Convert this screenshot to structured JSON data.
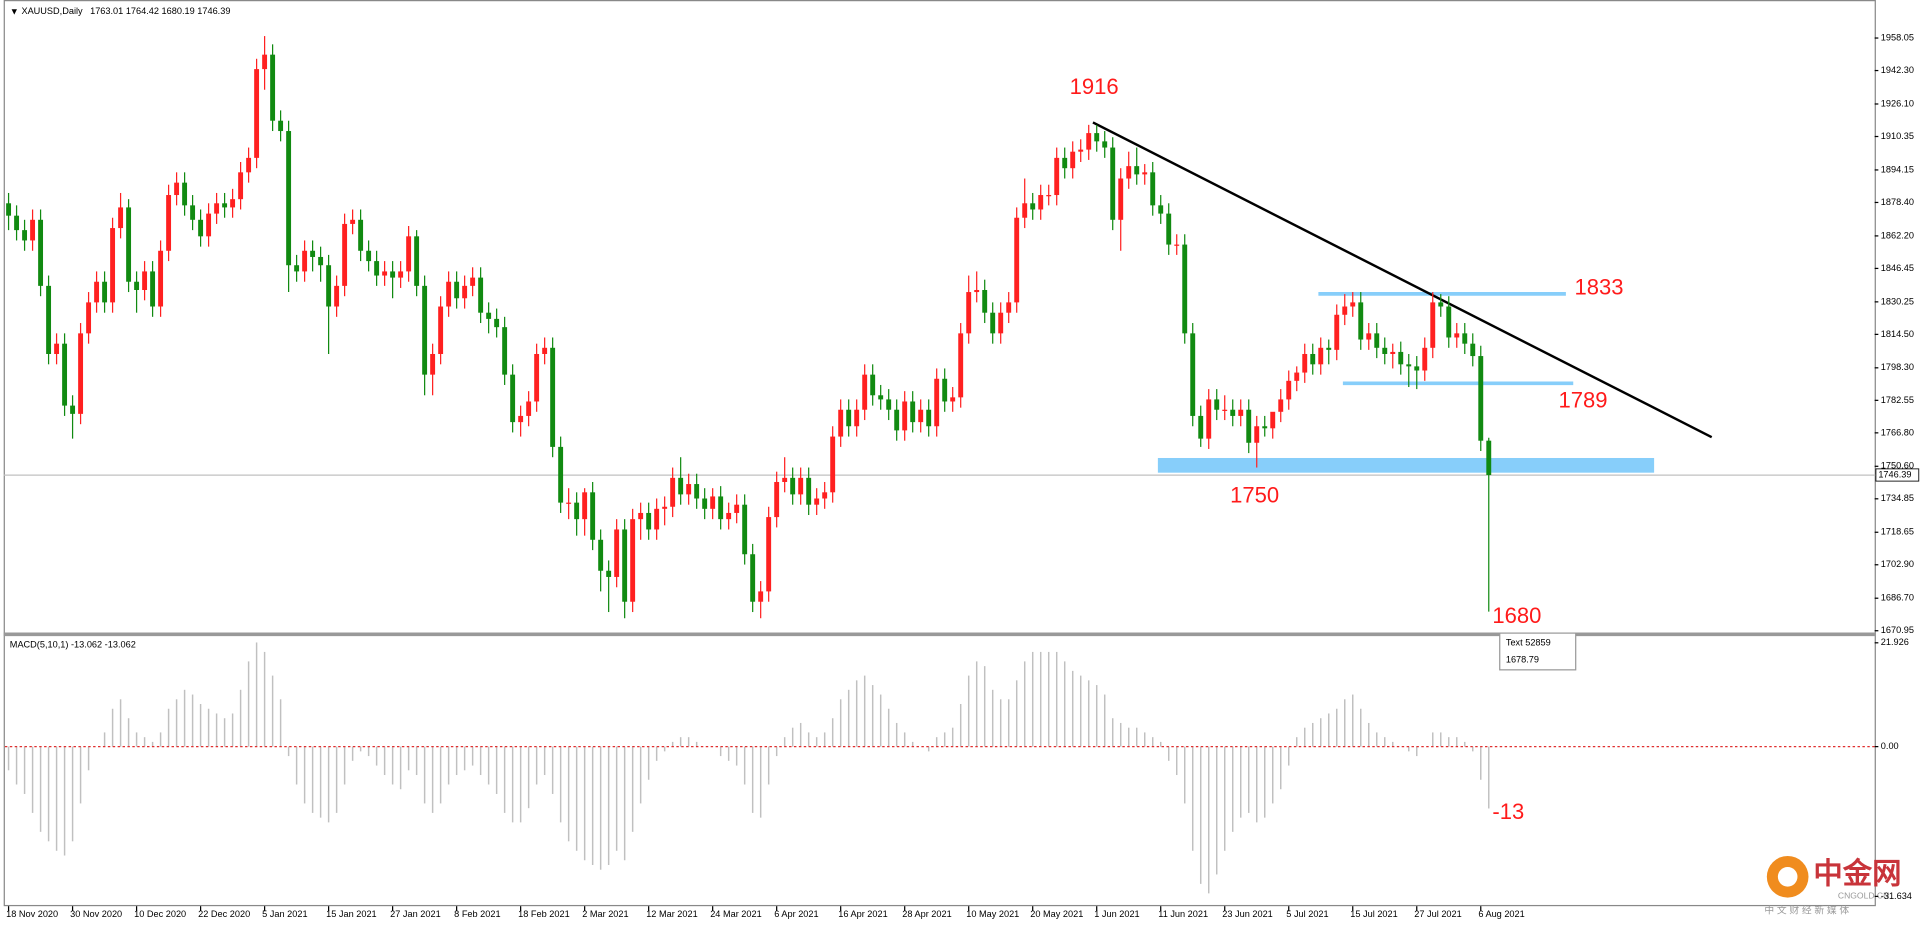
{
  "chart_data": [
    {
      "type": "candlestick",
      "title": "XAUUSD,Daily",
      "bull_color": "#ff2020",
      "bear_color": "#118a11",
      "categories": [
        "18 Nov 2020",
        null,
        null,
        null,
        null,
        null,
        null,
        null,
        "30 Nov 2020",
        null,
        null,
        null,
        null,
        null,
        null,
        null,
        "10 Dec 2020",
        null,
        null,
        null,
        null,
        null,
        null,
        null,
        "22 Dec 2020",
        null,
        null,
        null,
        null,
        null,
        null,
        null,
        "5 Jan 2021",
        null,
        null,
        null,
        null,
        null,
        null,
        null,
        "15 Jan 2021",
        null,
        null,
        null,
        null,
        null,
        null,
        null,
        "27 Jan 2021",
        null,
        null,
        null,
        null,
        null,
        null,
        null,
        "8 Feb 2021",
        null,
        null,
        null,
        null,
        null,
        null,
        null,
        "18 Feb 2021",
        null,
        null,
        null,
        null,
        null,
        null,
        null,
        "2 Mar 2021",
        null,
        null,
        null,
        null,
        null,
        null,
        null,
        "12 Mar 2021",
        null,
        null,
        null,
        null,
        null,
        null,
        null,
        "24 Mar 2021",
        null,
        null,
        null,
        null,
        null,
        null,
        null,
        "6 Apr 2021",
        null,
        null,
        null,
        null,
        null,
        null,
        null,
        "16 Apr 2021",
        null,
        null,
        null,
        null,
        null,
        null,
        null,
        "28 Apr 2021",
        null,
        null,
        null,
        null,
        null,
        null,
        null,
        "10 May 2021",
        null,
        null,
        null,
        null,
        null,
        null,
        null,
        "20 May 2021",
        null,
        null,
        null,
        null,
        null,
        null,
        null,
        "1 Jun 2021",
        null,
        null,
        null,
        null,
        null,
        null,
        null,
        "11 Jun 2021",
        null,
        null,
        null,
        null,
        null,
        null,
        null,
        "23 Jun 2021",
        null,
        null,
        null,
        null,
        null,
        null,
        null,
        "5 Jul 2021",
        null,
        null,
        null,
        null,
        null,
        null,
        null,
        "15 Jul 2021",
        null,
        null,
        null,
        null,
        null,
        null,
        null,
        "27 Jul 2021",
        null,
        null,
        null,
        null,
        null,
        null,
        null,
        "6 Aug 2021",
        null
      ],
      "open": [
        1878,
        1872,
        1865,
        1860,
        1870,
        1838,
        1805,
        1810,
        1780,
        1776,
        1815,
        1830,
        1840,
        1830,
        1866,
        1876,
        1840,
        1836,
        1845,
        1828,
        1855,
        1882,
        1888,
        1877,
        1870,
        1862,
        1873,
        1878,
        1876,
        1880,
        1893,
        1900,
        1943,
        1950,
        1918,
        1913,
        1848,
        1845,
        1855,
        1852,
        1848,
        1828,
        1838,
        1868,
        1870,
        1855,
        1850,
        1843,
        1845,
        1842,
        1845,
        1862,
        1838,
        1795,
        1805,
        1828,
        1840,
        1832,
        1838,
        1842,
        1825,
        1822,
        1818,
        1795,
        1772,
        1775,
        1782,
        1805,
        1808,
        1760,
        1733,
        1733,
        1725,
        1738,
        1715,
        1700,
        1697,
        1720,
        1685,
        1725,
        1728,
        1720,
        1730,
        1731,
        1745,
        1737,
        1742,
        1735,
        1730,
        1736,
        1725,
        1728,
        1732,
        1708,
        1685,
        1690,
        1726,
        1743,
        1745,
        1737,
        1745,
        1732,
        1735,
        1738,
        1765,
        1778,
        1770,
        1778,
        1795,
        1785,
        1783,
        1778,
        1768,
        1782,
        1772,
        1778,
        1770,
        1793,
        1782,
        1784,
        1815,
        1835,
        1836,
        1825,
        1815,
        1825,
        1830,
        1871,
        1878,
        1875,
        1882,
        1882,
        1900,
        1895,
        1903,
        1904,
        1912,
        1908,
        1905,
        1870,
        1890,
        1896,
        1892,
        1893,
        1877,
        1873,
        1858,
        1858,
        1815,
        1775,
        1764,
        1783,
        1778,
        1778,
        1775,
        1778,
        1762,
        1770,
        1769,
        1777,
        1783,
        1792,
        1796,
        1805,
        1800,
        1808,
        1807,
        1824,
        1828,
        1830,
        1812,
        1815,
        1808,
        1805,
        1806,
        1800,
        1799,
        1797,
        1808,
        1830,
        1828,
        1813,
        1815,
        1810,
        1804,
        1763.01
      ],
      "high": [
        1883,
        1877,
        1870,
        1875,
        1875,
        1843,
        1815,
        1815,
        1785,
        1820,
        1835,
        1845,
        1845,
        1871,
        1883,
        1880,
        1845,
        1850,
        1850,
        1860,
        1887,
        1893,
        1893,
        1882,
        1875,
        1878,
        1883,
        1883,
        1885,
        1898,
        1905,
        1948,
        1959,
        1955,
        1923,
        1918,
        1853,
        1860,
        1860,
        1857,
        1853,
        1843,
        1873,
        1875,
        1875,
        1860,
        1855,
        1850,
        1850,
        1850,
        1867,
        1865,
        1843,
        1810,
        1833,
        1845,
        1845,
        1843,
        1847,
        1847,
        1830,
        1827,
        1823,
        1800,
        1780,
        1787,
        1810,
        1813,
        1813,
        1765,
        1740,
        1738,
        1740,
        1743,
        1720,
        1705,
        1725,
        1725,
        1730,
        1733,
        1733,
        1735,
        1736,
        1750,
        1755,
        1747,
        1747,
        1740,
        1740,
        1741,
        1733,
        1737,
        1737,
        1713,
        1695,
        1731,
        1748,
        1755,
        1750,
        1750,
        1750,
        1740,
        1743,
        1770,
        1783,
        1783,
        1783,
        1800,
        1800,
        1790,
        1788,
        1783,
        1787,
        1787,
        1783,
        1783,
        1798,
        1798,
        1789,
        1820,
        1843,
        1845,
        1841,
        1830,
        1830,
        1835,
        1876,
        1890,
        1883,
        1887,
        1887,
        1905,
        1905,
        1908,
        1909,
        1916,
        1916,
        1913,
        1910,
        1895,
        1903,
        1905,
        1897,
        1898,
        1882,
        1878,
        1863,
        1863,
        1820,
        1780,
        1788,
        1788,
        1785,
        1783,
        1783,
        1783,
        1775,
        1775,
        1774,
        1788,
        1797,
        1799,
        1810,
        1810,
        1813,
        1812,
        1829,
        1834,
        1835,
        1835,
        1820,
        1820,
        1813,
        1810,
        1811,
        1805,
        1804,
        1813,
        1835,
        1834,
        1833,
        1820,
        1820,
        1815,
        1809,
        1764.42
      ],
      "low": [
        1865,
        1860,
        1855,
        1855,
        1833,
        1800,
        1800,
        1775,
        1764,
        1771,
        1810,
        1825,
        1825,
        1825,
        1861,
        1835,
        1825,
        1831,
        1823,
        1823,
        1850,
        1877,
        1872,
        1865,
        1857,
        1857,
        1868,
        1871,
        1871,
        1875,
        1888,
        1895,
        1933,
        1913,
        1908,
        1835,
        1840,
        1840,
        1845,
        1840,
        1805,
        1823,
        1833,
        1863,
        1850,
        1845,
        1838,
        1838,
        1832,
        1837,
        1840,
        1833,
        1785,
        1785,
        1800,
        1823,
        1827,
        1827,
        1833,
        1820,
        1815,
        1813,
        1790,
        1767,
        1765,
        1770,
        1777,
        1800,
        1755,
        1728,
        1725,
        1717,
        1717,
        1710,
        1690,
        1680,
        1692,
        1677,
        1680,
        1715,
        1715,
        1715,
        1722,
        1726,
        1732,
        1732,
        1730,
        1725,
        1725,
        1720,
        1720,
        1723,
        1703,
        1680,
        1677,
        1685,
        1721,
        1738,
        1732,
        1732,
        1727,
        1727,
        1730,
        1733,
        1760,
        1765,
        1765,
        1773,
        1780,
        1778,
        1773,
        1763,
        1763,
        1767,
        1767,
        1765,
        1765,
        1777,
        1777,
        1779,
        1810,
        1830,
        1820,
        1810,
        1810,
        1820,
        1825,
        1866,
        1870,
        1870,
        1877,
        1877,
        1890,
        1890,
        1898,
        1899,
        1903,
        1900,
        1865,
        1855,
        1885,
        1887,
        1887,
        1872,
        1868,
        1853,
        1853,
        1810,
        1770,
        1760,
        1759,
        1773,
        1773,
        1770,
        1770,
        1757,
        1750,
        1765,
        1764,
        1772,
        1778,
        1787,
        1791,
        1795,
        1795,
        1800,
        1802,
        1819,
        1823,
        1807,
        1807,
        1803,
        1800,
        1798,
        1795,
        1789,
        1788,
        1792,
        1803,
        1823,
        1808,
        1808,
        1805,
        1799,
        1758,
        1680.19
      ],
      "close": [
        1872,
        1865,
        1860,
        1870,
        1838,
        1805,
        1810,
        1780,
        1776,
        1815,
        1830,
        1840,
        1830,
        1866,
        1876,
        1840,
        1836,
        1845,
        1828,
        1855,
        1882,
        1888,
        1877,
        1870,
        1862,
        1873,
        1878,
        1876,
        1880,
        1893,
        1900,
        1943,
        1950,
        1918,
        1913,
        1848,
        1845,
        1855,
        1852,
        1848,
        1828,
        1838,
        1868,
        1870,
        1855,
        1850,
        1843,
        1845,
        1842,
        1845,
        1862,
        1838,
        1795,
        1805,
        1828,
        1840,
        1832,
        1838,
        1842,
        1825,
        1822,
        1818,
        1795,
        1772,
        1775,
        1782,
        1805,
        1808,
        1760,
        1733,
        1733,
        1725,
        1738,
        1715,
        1700,
        1697,
        1720,
        1685,
        1725,
        1728,
        1720,
        1730,
        1731,
        1745,
        1737,
        1742,
        1735,
        1730,
        1736,
        1725,
        1728,
        1732,
        1708,
        1685,
        1690,
        1726,
        1743,
        1745,
        1737,
        1745,
        1732,
        1735,
        1738,
        1765,
        1778,
        1770,
        1778,
        1795,
        1785,
        1783,
        1778,
        1768,
        1782,
        1772,
        1778,
        1770,
        1793,
        1782,
        1784,
        1815,
        1835,
        1836,
        1825,
        1815,
        1825,
        1830,
        1871,
        1878,
        1875,
        1882,
        1882,
        1900,
        1895,
        1903,
        1904,
        1912,
        1908,
        1905,
        1870,
        1890,
        1896,
        1892,
        1893,
        1877,
        1873,
        1858,
        1858,
        1815,
        1775,
        1764,
        1783,
        1778,
        1778,
        1775,
        1778,
        1762,
        1770,
        1769,
        1777,
        1783,
        1792,
        1796,
        1805,
        1800,
        1808,
        1807,
        1824,
        1828,
        1830,
        1812,
        1815,
        1808,
        1805,
        1806,
        1800,
        1799,
        1797,
        1808,
        1830,
        1828,
        1813,
        1815,
        1810,
        1804,
        1763,
        1746.39
      ],
      "ylim": [
        1669.8,
        1974.1
      ],
      "yticks": [
        1958.05,
        {
          "value": 1942.3,
          "label": "1942.30"
        },
        {
          "value": 1926.1,
          "label": "1926.10"
        },
        1910.35,
        1894.15,
        {
          "value": 1878.4,
          "label": "1878.40"
        },
        {
          "value": 1862.2,
          "label": "1862.20"
        },
        1846.45,
        1830.25,
        {
          "value": 1814.5,
          "label": "1814.50"
        },
        {
          "value": 1798.3,
          "label": "1798.30"
        },
        1782.55,
        {
          "value": 1766.8,
          "label": "1766.80"
        },
        {
          "value": 1750.6,
          "label": "1750.60"
        },
        1734.85,
        1718.65,
        {
          "value": 1702.9,
          "label": "1702.90"
        },
        {
          "value": 1686.7,
          "label": "1686.70"
        },
        1670.95
      ],
      "annotations": [
        1916,
        1833,
        1789,
        1750,
        1680
      ],
      "tooltip": {
        "label": "Text 52859",
        "price": 1678.79
      }
    },
    {
      "type": "bar",
      "title": "MACD(5,10,1)",
      "readout": [
        -13.062,
        -13.062
      ],
      "color": "#c0c0c0",
      "values": [
        -5,
        -8,
        -10,
        -14,
        -18,
        -20,
        -22,
        -23,
        -20,
        -12,
        -5,
        0,
        3,
        8,
        10,
        6,
        3,
        2,
        1,
        3,
        8,
        10,
        12,
        11,
        9,
        8,
        7,
        6,
        7,
        12,
        18,
        22,
        20,
        15,
        10,
        -2,
        -8,
        -12,
        -14,
        -15,
        -16,
        -14,
        -8,
        -3,
        -1,
        -2,
        -4,
        -6,
        -8,
        -9,
        -5,
        -6,
        -12,
        -14,
        -12,
        -8,
        -6,
        -5,
        -4,
        -6,
        -8,
        -10,
        -14,
        -16,
        -16,
        -13,
        -8,
        -6,
        -10,
        -16,
        -20,
        -22,
        -24,
        -25,
        -26,
        -25,
        -22,
        -24,
        -18,
        -12,
        -7,
        -3,
        -1,
        1,
        2,
        2,
        1,
        0,
        0,
        -2,
        -3,
        -4,
        -8,
        -14,
        -15,
        -8,
        -2,
        2,
        4,
        5,
        3,
        2,
        3,
        6,
        10,
        12,
        14,
        15,
        13,
        11,
        8,
        5,
        3,
        1,
        0,
        -1,
        2,
        3,
        4,
        9,
        15,
        18,
        17,
        12,
        10,
        10,
        14,
        18,
        20,
        20,
        20,
        20,
        18,
        16,
        15,
        14,
        13,
        11,
        6,
        5,
        4,
        4,
        3,
        2,
        1,
        -3,
        -6,
        -12,
        -22,
        -29,
        -31,
        -27,
        -22,
        -18,
        -15,
        -14,
        -16,
        -15,
        -12,
        -9,
        -4,
        2,
        4,
        5,
        6,
        7,
        8,
        10,
        11,
        8,
        5,
        3,
        2,
        1,
        0,
        -1,
        -2,
        0,
        3,
        3,
        2,
        2,
        1,
        -1,
        -7,
        -13.062
      ],
      "ylim": [
        -33.7,
        23.2
      ],
      "yticks": [
        21.926,
        {
          "value": 0,
          "label": "0.00"
        },
        -31.634
      ],
      "annotations": [
        -13
      ]
    }
  ],
  "brand": {
    "name": "中金网",
    "site": "CNGOLD.CN",
    "slogan": "中 文 财 经 新 媒 体"
  }
}
